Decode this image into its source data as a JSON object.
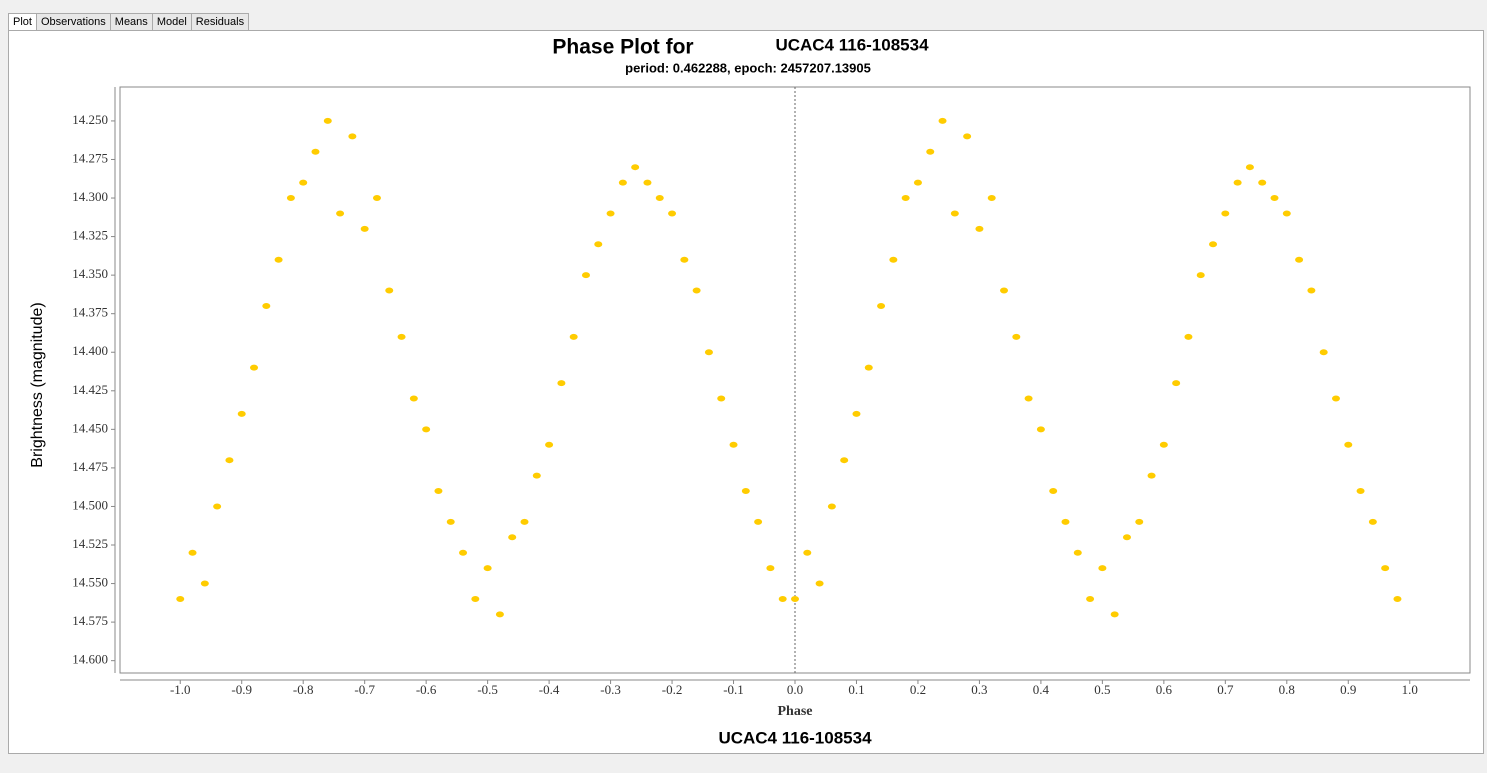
{
  "tabs": [
    "Plot",
    "Observations",
    "Means",
    "Model",
    "Residuals"
  ],
  "footer": "UCAC4 116-108534",
  "chart_data": {
    "type": "scatter",
    "title": "Phase Plot for",
    "object": "UCAC4 116-108534",
    "subtitle": "period: 0.462288, epoch: 2457207.13905",
    "x_label": "Phase",
    "y_label": "Brightness (magnitude)",
    "color": "#ffcc00",
    "y_inverted": true,
    "xlim": [
      -1.098,
      1.098
    ],
    "ylim": [
      14.228,
      14.608
    ],
    "xticks": [
      {
        "value": -1.0,
        "label": "-1.0"
      },
      -0.9,
      -0.8,
      -0.7,
      -0.6,
      -0.5,
      -0.4,
      -0.3,
      -0.2,
      -0.1,
      {
        "value": 0.0,
        "label": "0.0"
      },
      0.1,
      0.2,
      0.3,
      0.4,
      0.5,
      0.6,
      0.7,
      0.8,
      0.9,
      {
        "value": 1.0,
        "label": "1.0"
      }
    ],
    "yticks": [
      {
        "value": 14.25,
        "label": "14.250"
      },
      {
        "value": 14.275,
        "label": "14.275"
      },
      {
        "value": 14.3,
        "label": "14.300"
      },
      {
        "value": 14.325,
        "label": "14.325"
      },
      {
        "value": 14.35,
        "label": "14.350"
      },
      {
        "value": 14.375,
        "label": "14.375"
      },
      {
        "value": 14.4,
        "label": "14.400"
      },
      {
        "value": 14.425,
        "label": "14.425"
      },
      {
        "value": 14.45,
        "label": "14.450"
      },
      {
        "value": 14.475,
        "label": "14.475"
      },
      {
        "value": 14.5,
        "label": "14.500"
      },
      {
        "value": 14.525,
        "label": "14.525"
      },
      {
        "value": 14.55,
        "label": "14.550"
      },
      {
        "value": 14.575,
        "label": "14.575"
      },
      {
        "value": 14.6,
        "label": "14.600"
      }
    ],
    "x": [
      0.0,
      0.02,
      0.04,
      0.06,
      0.08,
      0.1,
      0.12,
      0.14,
      0.16,
      0.18,
      0.2,
      0.22,
      0.24,
      0.26,
      0.28,
      0.3,
      0.32,
      0.34,
      0.36,
      0.38,
      0.4,
      0.42,
      0.44,
      0.46,
      0.48,
      0.5,
      0.52,
      0.54,
      0.56,
      0.58,
      0.6,
      0.62,
      0.64,
      0.66,
      0.68,
      0.7,
      0.72,
      0.74,
      0.76,
      0.78,
      0.8,
      0.82,
      0.84,
      0.86,
      0.88,
      0.9,
      0.92,
      0.94,
      0.96,
      0.98,
      -1.0,
      -0.98,
      -0.96,
      -0.94,
      -0.92,
      -0.9,
      -0.88,
      -0.86,
      -0.84,
      -0.82,
      -0.8,
      -0.78,
      -0.76,
      -0.74,
      -0.72,
      -0.7,
      -0.68,
      -0.66,
      -0.64,
      -0.62,
      -0.6,
      -0.58,
      -0.56,
      -0.54,
      -0.52,
      -0.5,
      -0.48,
      -0.46,
      -0.44,
      -0.42,
      -0.4,
      -0.38,
      -0.36,
      -0.34,
      -0.32,
      -0.3,
      -0.28,
      -0.26,
      -0.24,
      -0.22,
      -0.2,
      -0.18,
      -0.16,
      -0.14,
      -0.12,
      -0.1,
      -0.08,
      -0.06,
      -0.04,
      -0.02
    ],
    "values": [
      14.56,
      14.53,
      14.55,
      14.5,
      14.47,
      14.44,
      14.41,
      14.37,
      14.34,
      14.3,
      14.29,
      14.27,
      14.25,
      14.31,
      14.26,
      14.32,
      14.3,
      14.36,
      14.39,
      14.43,
      14.45,
      14.49,
      14.51,
      14.53,
      14.56,
      14.54,
      14.57,
      14.52,
      14.51,
      14.48,
      14.46,
      14.42,
      14.39,
      14.35,
      14.33,
      14.31,
      14.29,
      14.28,
      14.29,
      14.3,
      14.31,
      14.34,
      14.36,
      14.4,
      14.43,
      14.46,
      14.49,
      14.51,
      14.54,
      14.56,
      14.56,
      14.53,
      14.55,
      14.5,
      14.47,
      14.44,
      14.41,
      14.37,
      14.34,
      14.3,
      14.29,
      14.27,
      14.25,
      14.31,
      14.26,
      14.32,
      14.3,
      14.36,
      14.39,
      14.43,
      14.45,
      14.49,
      14.51,
      14.53,
      14.56,
      14.54,
      14.57,
      14.52,
      14.51,
      14.48,
      14.46,
      14.42,
      14.39,
      14.35,
      14.33,
      14.31,
      14.29,
      14.28,
      14.29,
      14.3,
      14.31,
      14.34,
      14.36,
      14.4,
      14.43,
      14.46,
      14.49,
      14.51,
      14.54,
      14.56
    ]
  }
}
